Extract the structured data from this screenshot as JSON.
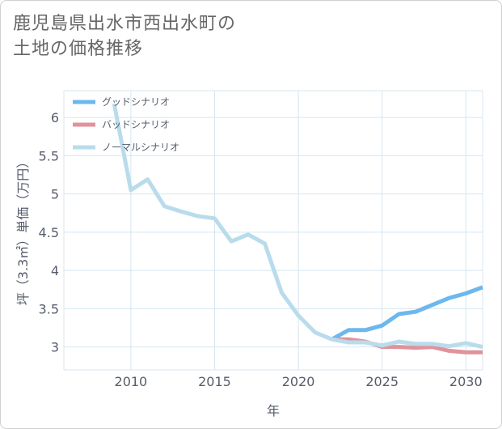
{
  "title_lines": [
    "鹿児島県出水市西出水町の",
    "土地の価格推移"
  ],
  "chart_data": {
    "type": "line",
    "xlabel": "年",
    "ylabel": "坪（3.3㎡）単価（万円）",
    "xlim": [
      2006,
      2031
    ],
    "ylim": [
      2.7,
      6.35
    ],
    "x_ticks": [
      2010,
      2015,
      2020,
      2025,
      2030
    ],
    "y_ticks": [
      3,
      3.5,
      4,
      4.5,
      5,
      5.5,
      6
    ],
    "grid": true,
    "legend_position": "top-left",
    "series": [
      {
        "name": "グッドシナリオ",
        "color": "#6cb8ee",
        "x": [
          2022,
          2023,
          2024,
          2025,
          2026,
          2027,
          2028,
          2029,
          2030,
          2031
        ],
        "y": [
          3.1,
          3.22,
          3.22,
          3.28,
          3.43,
          3.46,
          3.55,
          3.64,
          3.7,
          3.78
        ]
      },
      {
        "name": "バッドシナリオ",
        "color": "#e0939b",
        "x": [
          2022,
          2023,
          2024,
          2025,
          2026,
          2027,
          2028,
          2029,
          2030,
          2031
        ],
        "y": [
          3.1,
          3.1,
          3.07,
          3.0,
          3.0,
          2.99,
          3.0,
          2.95,
          2.93,
          2.93
        ]
      },
      {
        "name": "ノーマルシナリオ",
        "color": "#b9dcec",
        "x": [
          2009,
          2010,
          2011,
          2012,
          2013,
          2014,
          2015,
          2016,
          2017,
          2018,
          2019,
          2020,
          2021,
          2022,
          2023,
          2024,
          2025,
          2026,
          2027,
          2028,
          2029,
          2030,
          2031
        ],
        "y": [
          6.18,
          5.05,
          5.19,
          4.84,
          4.77,
          4.71,
          4.68,
          4.38,
          4.47,
          4.35,
          3.71,
          3.41,
          3.19,
          3.1,
          3.06,
          3.06,
          3.02,
          3.07,
          3.04,
          3.04,
          3.01,
          3.05,
          3.0
        ]
      }
    ]
  }
}
